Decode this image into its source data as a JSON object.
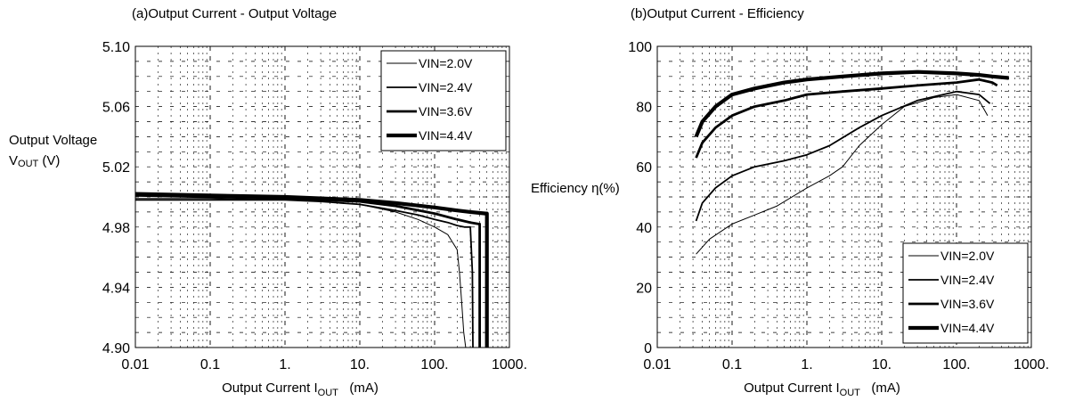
{
  "chart_data": [
    {
      "type": "line",
      "title": "(a)Output Current - Output Voltage",
      "xlabel": "Output Current I",
      "xlabel_sub": "OUT",
      "xlabel_unit": "(mA)",
      "ylabel_line1": "Output Voltage",
      "ylabel_line2": "V",
      "ylabel_sub": "OUT",
      "ylabel_unit": "(V)",
      "x_scale": "log",
      "xlim": [
        0.01,
        1000
      ],
      "ylim": [
        4.9,
        5.1
      ],
      "x_ticks": [
        0.01,
        0.1,
        1,
        10,
        100,
        1000
      ],
      "x_tick_labels": [
        "0.01",
        "0.1",
        "1.",
        "10.",
        "100.",
        "1000."
      ],
      "y_ticks": [
        4.9,
        4.94,
        4.98,
        5.02,
        5.06,
        5.1
      ],
      "y_tick_labels": [
        "4.90",
        "4.94",
        "4.98",
        "5.02",
        "5.06",
        "5.10"
      ],
      "grid": true,
      "legend": "top-right",
      "series": [
        {
          "name": "VIN=2.0V",
          "x": [
            0.01,
            0.1,
            1,
            3,
            10,
            30,
            60,
            100,
            150,
            200,
            215,
            230,
            245,
            260
          ],
          "y": [
            4.999,
            4.999,
            4.998,
            4.997,
            4.995,
            4.99,
            4.985,
            4.98,
            4.975,
            4.965,
            4.95,
            4.93,
            4.91,
            4.9
          ]
        },
        {
          "name": "VIN=2.4V",
          "x": [
            0.01,
            0.1,
            1,
            3,
            10,
            30,
            60,
            100,
            150,
            200,
            250,
            300,
            320,
            325
          ],
          "y": [
            4.998,
            4.998,
            4.998,
            4.997,
            4.995,
            4.991,
            4.988,
            4.985,
            4.983,
            4.981,
            4.98,
            4.98,
            4.95,
            4.9
          ]
        },
        {
          "name": "VIN=3.6V",
          "x": [
            0.01,
            0.1,
            1,
            10,
            30,
            100,
            200,
            300,
            390,
            400,
            400
          ],
          "y": [
            5.001,
            5.0,
            4.999,
            4.997,
            4.994,
            4.989,
            4.985,
            4.983,
            4.982,
            4.982,
            4.9
          ]
        },
        {
          "name": "VIN=4.4V",
          "x": [
            0.01,
            0.1,
            1,
            10,
            30,
            100,
            200,
            300,
            480,
            500,
            500
          ],
          "y": [
            5.002,
            5.001,
            5.0,
            4.998,
            4.996,
            4.993,
            4.991,
            4.99,
            4.989,
            4.989,
            4.9
          ]
        }
      ]
    },
    {
      "type": "line",
      "title": "(b)Output Current - Efficiency",
      "xlabel": "Output Current I",
      "xlabel_sub": "OUT",
      "xlabel_unit": "(mA)",
      "ylabel": "Efficiency η(%)",
      "x_scale": "log",
      "xlim": [
        0.01,
        1000
      ],
      "ylim": [
        0,
        100
      ],
      "x_ticks": [
        0.01,
        0.1,
        1,
        10,
        100,
        1000
      ],
      "x_tick_labels": [
        "0.01",
        "0.1",
        "1.",
        "10.",
        "100.",
        "1000."
      ],
      "y_ticks": [
        0,
        20,
        40,
        60,
        80,
        100
      ],
      "y_tick_labels": [
        "0",
        "20",
        "40",
        "60",
        "80",
        "100"
      ],
      "grid": true,
      "legend": "bottom-right",
      "series": [
        {
          "name": "VIN=2.0V",
          "x": [
            0.033,
            0.05,
            0.1,
            0.2,
            0.4,
            1,
            2,
            3,
            5,
            10,
            20,
            50,
            100,
            200,
            260
          ],
          "y": [
            31,
            36,
            41,
            44,
            47,
            53,
            57,
            60,
            67,
            74,
            80,
            83,
            84,
            82,
            77
          ]
        },
        {
          "name": "VIN=2.4V",
          "x": [
            0.033,
            0.04,
            0.06,
            0.1,
            0.2,
            0.5,
            1,
            2,
            5,
            10,
            30,
            100,
            200,
            280
          ],
          "y": [
            42,
            48,
            53,
            57,
            60,
            62,
            64,
            67,
            73,
            77,
            82,
            85,
            84,
            81
          ]
        },
        {
          "name": "VIN=3.6V",
          "x": [
            0.033,
            0.04,
            0.06,
            0.1,
            0.2,
            0.5,
            1,
            3,
            10,
            30,
            100,
            200,
            300,
            350
          ],
          "y": [
            63,
            68,
            73,
            77,
            80,
            82,
            84,
            85,
            86,
            87,
            88,
            89,
            88,
            87
          ]
        },
        {
          "name": "VIN=4.4V",
          "x": [
            0.033,
            0.04,
            0.06,
            0.1,
            0.2,
            0.5,
            1,
            3,
            10,
            30,
            100,
            200,
            300,
            500
          ],
          "y": [
            70,
            75,
            80,
            84,
            86,
            88,
            89,
            90,
            91,
            91.5,
            91,
            90.5,
            90,
            89.5
          ]
        }
      ]
    }
  ]
}
